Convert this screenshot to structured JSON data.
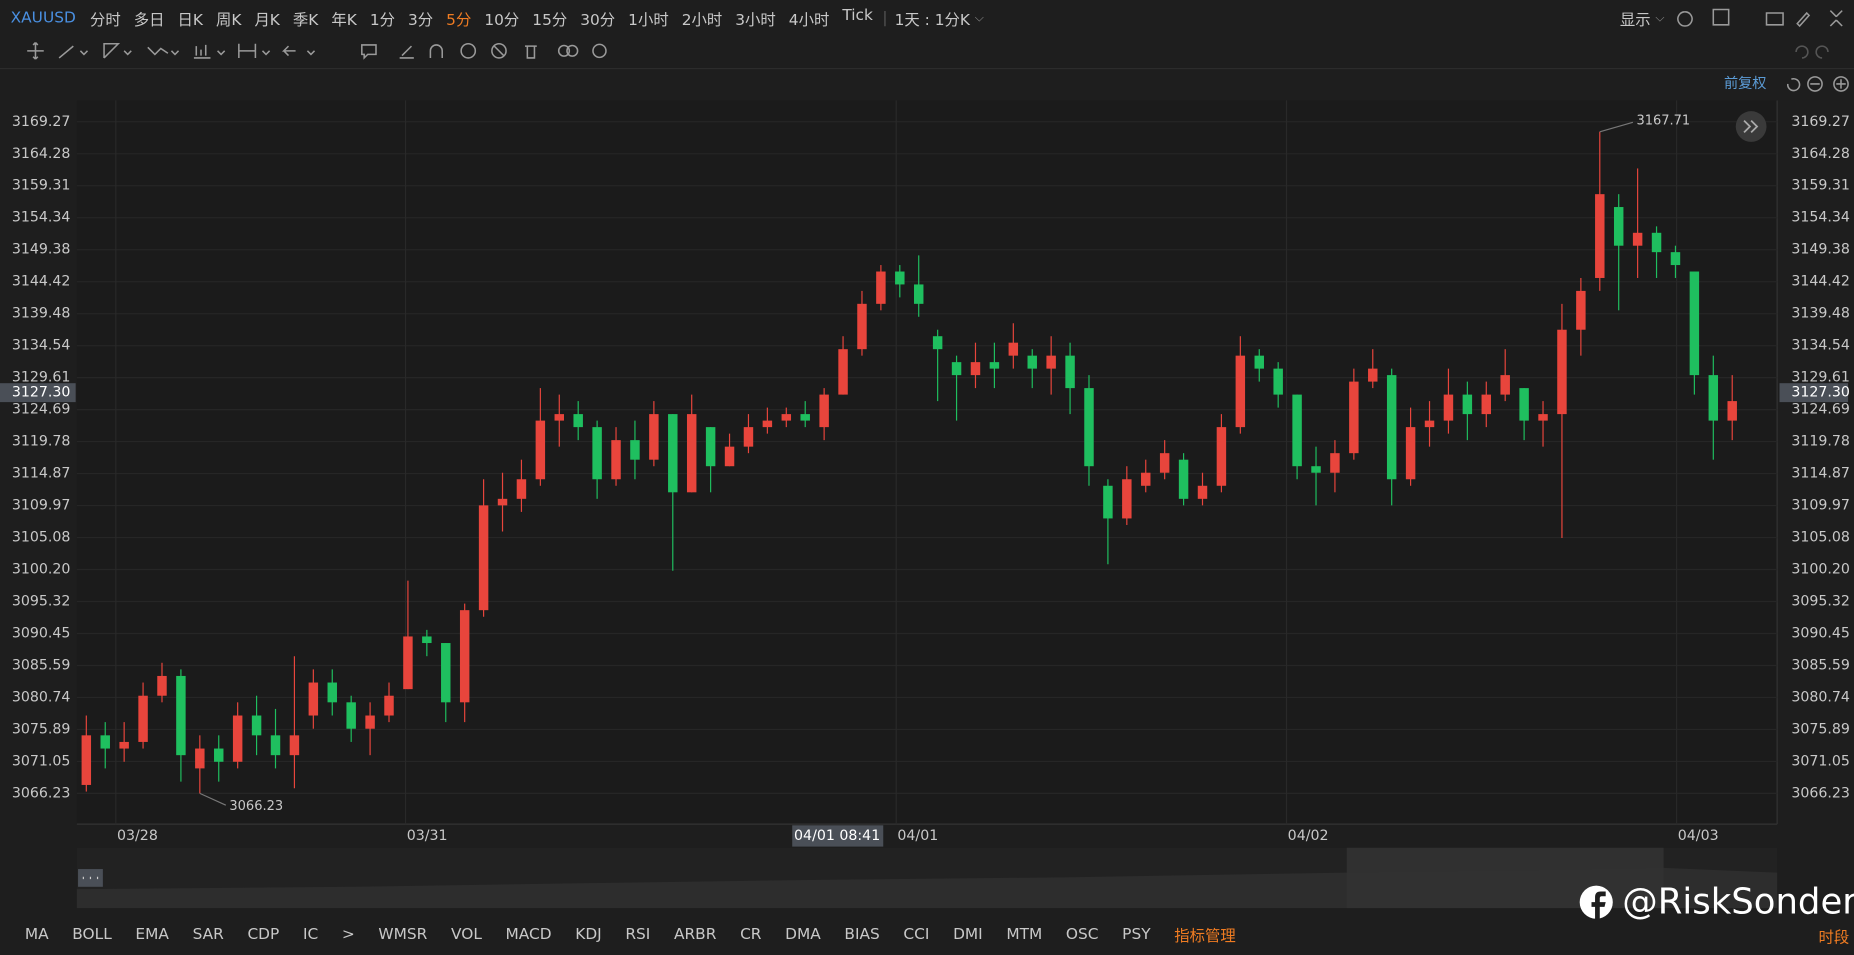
{
  "toolbar": {
    "symbol": "XAUUSD",
    "periods": [
      "分时",
      "多日",
      "日K",
      "周K",
      "月K",
      "季K",
      "年K",
      "1分",
      "3分",
      "5分",
      "10分",
      "15分",
      "30分",
      "1小时",
      "2小时",
      "3小时",
      "4小时",
      "Tick"
    ],
    "active": 9,
    "range_selector": "1天 : 1分K",
    "display": "显示"
  },
  "adjust": "前复权",
  "chart_data": {
    "type": "candlestick",
    "open": [
      3067.5,
      3075,
      3073,
      3074,
      3081,
      3084,
      3070,
      3073,
      3071,
      3078,
      3075,
      3072,
      3078,
      3083,
      3080,
      3076,
      3078,
      3082,
      3090,
      3089,
      3080,
      3094,
      3110,
      3111,
      3114,
      3123,
      3124,
      3122,
      3114,
      3120,
      3117,
      3124,
      3112,
      3122,
      3116,
      3119,
      3122,
      3123,
      3124,
      3122,
      3127,
      3134,
      3141,
      3146,
      3144,
      3136,
      3132,
      3130,
      3132,
      3133,
      3133,
      3131,
      3133,
      3128,
      3113,
      3108,
      3113,
      3115,
      3117,
      3111,
      3113,
      3122,
      3133,
      3131,
      3127,
      3116,
      3115,
      3118,
      3129,
      3130,
      3114,
      3122,
      3123,
      3127,
      3124,
      3127,
      3128,
      3123,
      3124,
      3137,
      3145,
      3156,
      3150,
      3152,
      3149,
      3146,
      3130,
      3123
    ],
    "high": [
      3078,
      3077,
      3077,
      3083,
      3086,
      3085,
      3075,
      3075,
      3080,
      3081,
      3079,
      3087,
      3085,
      3085,
      3081,
      3080,
      3083,
      3098.5,
      3091,
      3089,
      3095,
      3114,
      3115,
      3117,
      3128,
      3127,
      3126,
      3123,
      3122,
      3123,
      3126,
      3124,
      3127,
      3122,
      3121,
      3124,
      3125,
      3125,
      3126,
      3128,
      3136,
      3143,
      3147,
      3147,
      3148.5,
      3137,
      3133,
      3135,
      3135,
      3138,
      3134,
      3136,
      3135,
      3130,
      3114,
      3116,
      3117,
      3120,
      3118,
      3115,
      3124,
      3136,
      3134,
      3132,
      3127,
      3119,
      3120,
      3131,
      3134,
      3131,
      3125,
      3126,
      3131,
      3129,
      3129,
      3134,
      3128,
      3126,
      3141,
      3145,
      3167.71,
      3158,
      3162,
      3153,
      3150,
      3146,
      3133,
      3130
    ],
    "low": [
      3066.5,
      3070,
      3071,
      3073,
      3080,
      3068,
      3066.23,
      3068,
      3070,
      3072,
      3070,
      3067,
      3076,
      3078,
      3074,
      3072,
      3077,
      3082,
      3087,
      3077,
      3077,
      3093,
      3106,
      3109,
      3113,
      3119,
      3120,
      3111,
      3113,
      3114,
      3116,
      3100,
      3112,
      3112,
      3116,
      3118,
      3121,
      3122,
      3122,
      3120,
      3127,
      3133,
      3140,
      3142,
      3139,
      3126,
      3123,
      3128,
      3128,
      3131,
      3128,
      3127,
      3124,
      3113,
      3101,
      3107,
      3112,
      3114,
      3110,
      3110,
      3112,
      3121,
      3129,
      3125,
      3114,
      3110,
      3112,
      3117,
      3128,
      3110,
      3113,
      3119,
      3121,
      3120,
      3122,
      3126,
      3120,
      3119,
      3105,
      3133,
      3143,
      3140,
      3145,
      3145,
      3145,
      3127,
      3117,
      3120
    ],
    "close": [
      3075,
      3073,
      3074,
      3081,
      3084,
      3072,
      3073,
      3071,
      3078,
      3075,
      3072,
      3075,
      3083,
      3080,
      3076,
      3078,
      3081,
      3090,
      3089,
      3080,
      3094,
      3110,
      3111,
      3114,
      3123,
      3124,
      3122,
      3114,
      3120,
      3117,
      3124,
      3112,
      3124,
      3116,
      3119,
      3122,
      3123,
      3124,
      3123,
      3127,
      3134,
      3141,
      3146,
      3144,
      3141,
      3134,
      3130,
      3132,
      3131,
      3135,
      3131,
      3133,
      3128,
      3116,
      3108,
      3114,
      3115,
      3118,
      3111,
      3113,
      3122,
      3133,
      3131,
      3127,
      3116,
      3115,
      3118,
      3129,
      3131,
      3114,
      3122,
      3123,
      3127,
      3124,
      3127,
      3130,
      3123,
      3124,
      3137,
      3143,
      3158,
      3150,
      3152,
      3149,
      3147,
      3130,
      3123,
      3126
    ],
    "up_color": "#e8453c",
    "down_color": "#1fbf5f",
    "log_scale": true,
    "grid": true,
    "xlim": [
      0,
      89.875
    ],
    "xticks": [
      {
        "value": 2.06,
        "label": "03/28"
      },
      {
        "value": 17.375,
        "label": "03/31"
      },
      {
        "value": 43.31,
        "label": "04/01"
      },
      {
        "value": 63.94,
        "label": "04/02"
      },
      {
        "value": 84.56,
        "label": "04/03"
      }
    ],
    "ylim": [
      3061.59,
      3172.59
    ],
    "yticks": [
      3169.27,
      3164.28,
      3159.31,
      3154.34,
      3149.38,
      3144.42,
      3139.48,
      3134.54,
      3129.61,
      3124.69,
      3119.78,
      3114.87,
      3109.97,
      3105.08,
      {
        "value": 3100.2,
        "label": "3100.20"
      },
      3095.32,
      3090.45,
      3085.59,
      3080.74,
      3075.89,
      3071.05,
      3066.23
    ],
    "last_price": {
      "value": 3127.3,
      "label": "3127.30"
    },
    "crosshair_time": "04/01 08:41",
    "high_annotation": 80,
    "low_annotation": 6
  },
  "indicators": {
    "items": [
      "MA",
      "BOLL",
      "EMA",
      "SAR",
      "CDP",
      "IC",
      ">",
      "WMSR",
      "VOL",
      "MACD",
      "KDJ",
      "RSI",
      "ARBR",
      "CR",
      "DMA",
      "BIAS",
      "CCI",
      "DMI",
      "MTM",
      "OSC",
      "PSY"
    ],
    "manage": "指标管理",
    "session": "时段"
  },
  "watermark": "@RiskSonder"
}
